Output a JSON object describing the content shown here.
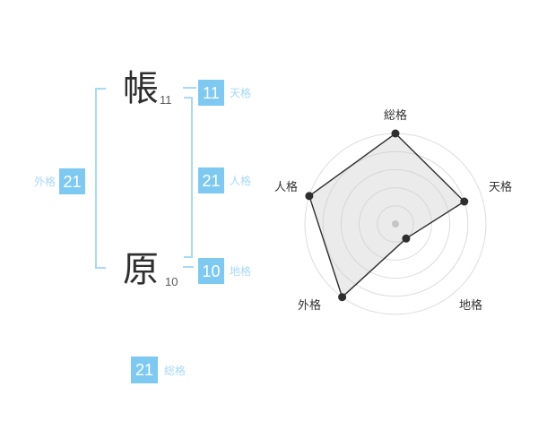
{
  "stroke_diagram": {
    "characters": [
      {
        "char": "帳",
        "strokes": "11"
      },
      {
        "char": "原",
        "strokes": "10"
      }
    ],
    "badges": {
      "tenkaku": {
        "value": "11",
        "label": "天格"
      },
      "jinkaku": {
        "value": "21",
        "label": "人格"
      },
      "chikaku": {
        "value": "10",
        "label": "地格"
      },
      "gaikaku": {
        "value": "21",
        "label": "外格"
      },
      "soukaku": {
        "value": "21",
        "label": "総格"
      }
    }
  },
  "colors": {
    "badge_blue": "#7ec9f2",
    "label_blue": "#a9d8f5",
    "bracket_blue": "#a8d9f7",
    "chart_line": "#2e2e2e",
    "chart_ring": "#dcdcdc",
    "chart_fill": "#cccccc",
    "chart_center_dot": "#c0c0c0",
    "chart_label": "#333333"
  },
  "chart_data": {
    "type": "radar",
    "title": "",
    "axes": [
      "総格",
      "天格",
      "地格",
      "外格",
      "人格"
    ],
    "values": [
      5,
      4,
      1,
      5,
      5
    ],
    "max": 5,
    "rings": 5,
    "start_angle_deg": -90,
    "grid": "circular",
    "legend": "none"
  }
}
